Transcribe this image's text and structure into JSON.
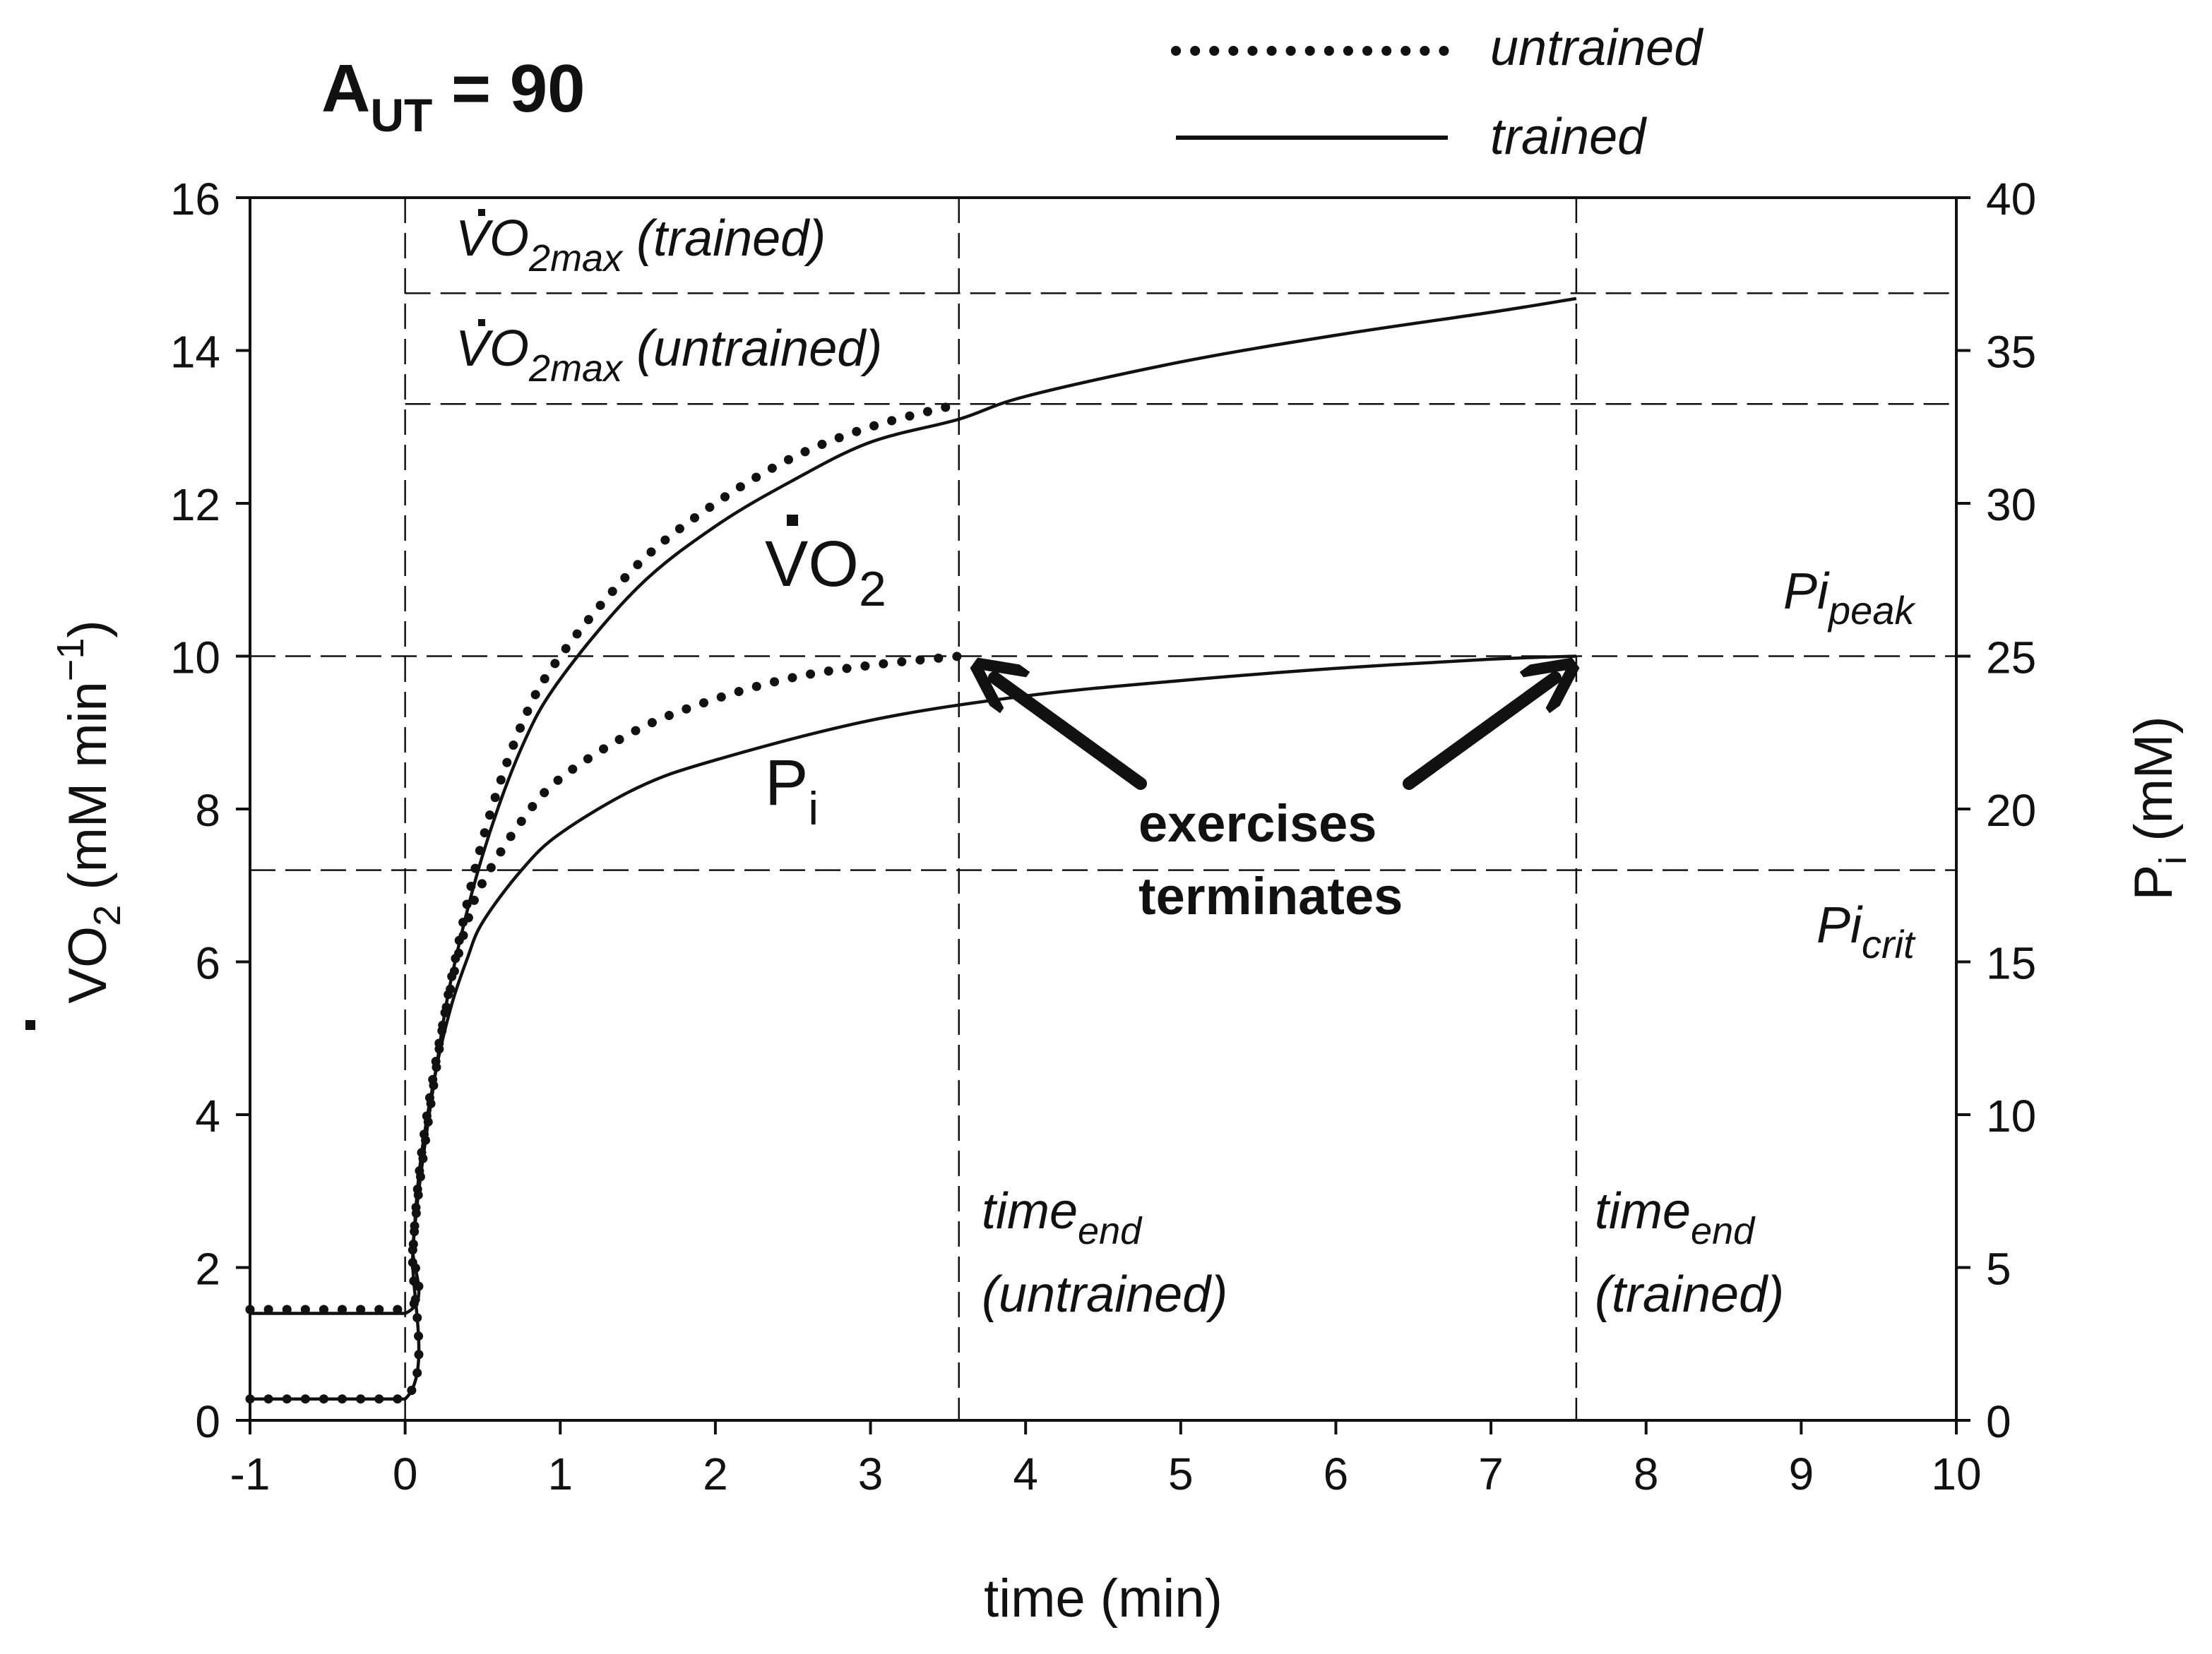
{
  "title": {
    "main": "A",
    "sub": "UT",
    "rest": " = 90"
  },
  "legend": {
    "untrained": "untrained",
    "trained": "trained"
  },
  "axes": {
    "xlabel": "time (min)",
    "ylabel_left": {
      "pre": "VO",
      "sub": "2",
      "mid": " (mM min",
      "sup": "−1",
      "post": ")"
    },
    "ylabel_right": {
      "pre": "P",
      "sub": "i",
      "post": " (mM)"
    }
  },
  "annotations": {
    "vo2max_trained": {
      "pre": "VO",
      "sub": "2max",
      "post": " (trained)"
    },
    "vo2max_untrained": {
      "pre": "VO",
      "sub": "2max",
      "post": " (untrained)"
    },
    "vo2_curve": {
      "pre": "VO",
      "sub": "2"
    },
    "pi_curve": {
      "pre": "P",
      "sub": "i"
    },
    "pi_peak": {
      "pre": "Pi",
      "sub": "peak"
    },
    "pi_crit": {
      "pre": "Pi",
      "sub": "crit"
    },
    "exercise_line1": "exercises",
    "exercise_line2": "terminates",
    "time_end_untrained": {
      "pre": "time",
      "sub": "end",
      "line2": "(untrained)"
    },
    "time_end_trained": {
      "pre": "time",
      "sub": "end",
      "line2": "(trained)"
    }
  },
  "chart_data": {
    "type": "line",
    "xlim": [
      -1,
      10
    ],
    "ylim_left": [
      0,
      16
    ],
    "ylim_right": [
      0,
      40
    ],
    "x_ticks": [
      "-1",
      "0",
      "1",
      "2",
      "3",
      "4",
      "5",
      "6",
      "7",
      "8",
      "9",
      "10"
    ],
    "y_left_ticks": [
      "0",
      "2",
      "4",
      "6",
      "8",
      "10",
      "12",
      "14",
      "16"
    ],
    "y_right_ticks": [
      "0",
      "5",
      "10",
      "15",
      "20",
      "25",
      "30",
      "35",
      "40"
    ],
    "grid": false,
    "legend_position": "top-right",
    "reference_lines": {
      "vo2max_trained": 14.75,
      "vo2max_untrained": 13.3,
      "pi_peak_mM": 25,
      "pi_crit_mM": 18,
      "time_end_untrained": 3.57,
      "time_end_trained": 7.55,
      "exercise_onset": 0
    },
    "series": [
      {
        "name": "untrained",
        "variable": "VO2",
        "axis": "left",
        "style": "dotted",
        "x": [
          -1,
          0,
          0.05,
          0.1,
          0.2,
          0.3,
          0.5,
          0.75,
          1,
          1.5,
          2,
          2.5,
          3,
          3.57
        ],
        "y": [
          1.45,
          1.45,
          2.3,
          3.2,
          4.6,
          5.8,
          7.6,
          9.1,
          10.0,
          11.2,
          12.0,
          12.6,
          13.0,
          13.3
        ]
      },
      {
        "name": "trained",
        "variable": "VO2",
        "axis": "left",
        "style": "solid",
        "x": [
          -1,
          0,
          0.05,
          0.1,
          0.2,
          0.3,
          0.5,
          0.75,
          1,
          1.5,
          2,
          2.5,
          3,
          3.57,
          4,
          5,
          6,
          7,
          7.55
        ],
        "y": [
          1.4,
          1.4,
          2.3,
          3.2,
          4.6,
          5.8,
          7.4,
          8.8,
          9.7,
          10.9,
          11.7,
          12.3,
          12.8,
          13.1,
          13.4,
          13.85,
          14.2,
          14.5,
          14.68
        ]
      },
      {
        "name": "untrained",
        "variable": "Pi",
        "axis": "right",
        "style": "dotted",
        "x": [
          -1,
          0,
          0.05,
          0.1,
          0.2,
          0.3,
          0.4,
          0.5,
          0.75,
          1,
          1.5,
          2,
          2.5,
          3,
          3.57
        ],
        "y": [
          0.7,
          0.7,
          5.5,
          8.5,
          11.8,
          14.3,
          16.3,
          17.6,
          19.6,
          21.0,
          22.6,
          23.6,
          24.3,
          24.7,
          25.0
        ]
      },
      {
        "name": "trained",
        "variable": "Pi",
        "axis": "right",
        "style": "solid",
        "x": [
          -1,
          0,
          0.05,
          0.1,
          0.2,
          0.3,
          0.4,
          0.5,
          0.75,
          1,
          1.5,
          2,
          3,
          4,
          5,
          6,
          7,
          7.55
        ],
        "y": [
          0.7,
          0.7,
          5.5,
          8.5,
          11.5,
          13.6,
          15.1,
          16.3,
          18.0,
          19.2,
          20.7,
          21.6,
          22.9,
          23.7,
          24.2,
          24.6,
          24.9,
          25.0
        ]
      }
    ]
  }
}
